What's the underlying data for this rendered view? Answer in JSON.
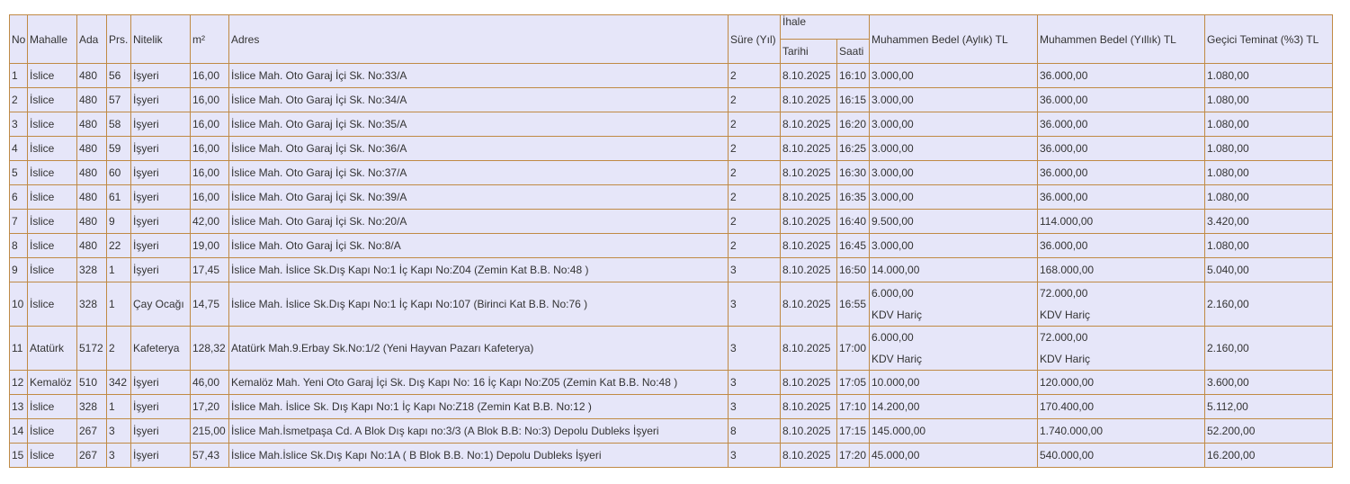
{
  "table": {
    "header": {
      "columns": [
        "No",
        "Mahalle",
        "Ada",
        "Prs.",
        "Nitelik",
        "m²",
        "Adres",
        "Süre (Yıl)"
      ],
      "group": "İhale",
      "group_columns": [
        "Tarihi",
        "Saati"
      ],
      "tail_columns": [
        "Muhammen Bedel (Aylık) TL",
        "Muhammen Bedel (Yıllık) TL",
        "Geçici Teminat (%3) TL"
      ]
    },
    "rows": [
      [
        "1",
        "İslice",
        "480",
        "56",
        "İşyeri",
        "16,00",
        "İslice Mah. Oto Garaj İçi Sk. No:33/A",
        "2",
        "8.10.2025",
        "16:10",
        "3.000,00",
        "36.000,00",
        "1.080,00"
      ],
      [
        "2",
        "İslice",
        "480",
        "57",
        "İşyeri",
        "16,00",
        "İslice Mah. Oto Garaj İçi Sk. No:34/A",
        "2",
        "8.10.2025",
        "16:15",
        "3.000,00",
        "36.000,00",
        "1.080,00"
      ],
      [
        "3",
        "İslice",
        "480",
        "58",
        "İşyeri",
        "16,00",
        "İslice Mah. Oto Garaj İçi Sk. No:35/A",
        "2",
        "8.10.2025",
        "16:20",
        "3.000,00",
        "36.000,00",
        "1.080,00"
      ],
      [
        "4",
        "İslice",
        "480",
        "59",
        "İşyeri",
        "16,00",
        "İslice Mah. Oto Garaj İçi Sk. No:36/A",
        "2",
        "8.10.2025",
        "16:25",
        "3.000,00",
        "36.000,00",
        "1.080,00"
      ],
      [
        "5",
        "İslice",
        "480",
        "60",
        "İşyeri",
        "16,00",
        "İslice Mah. Oto Garaj İçi Sk. No:37/A",
        "2",
        "8.10.2025",
        "16:30",
        "3.000,00",
        "36.000,00",
        "1.080,00"
      ],
      [
        "6",
        "İslice",
        "480",
        "61",
        "İşyeri",
        "16,00",
        "İslice Mah. Oto Garaj İçi Sk. No:39/A",
        "2",
        "8.10.2025",
        "16:35",
        "3.000,00",
        "36.000,00",
        "1.080,00"
      ],
      [
        "7",
        "İslice",
        "480",
        "9",
        "İşyeri",
        "42,00",
        "İslice Mah. Oto Garaj İçi Sk. No:20/A",
        "2",
        "8.10.2025",
        "16:40",
        "9.500,00",
        "114.000,00",
        "3.420,00"
      ],
      [
        "8",
        "İslice",
        "480",
        "22",
        "İşyeri",
        "19,00",
        "İslice Mah. Oto Garaj İçi Sk. No:8/A",
        "2",
        "8.10.2025",
        "16:45",
        "3.000,00",
        "36.000,00",
        "1.080,00"
      ],
      [
        "9",
        "İslice",
        "328",
        "1",
        "İşyeri",
        "17,45",
        "İslice Mah. İslice Sk.Dış Kapı No:1 İç Kapı No:Z04 (Zemin Kat B.B. No:48 )",
        "3",
        "8.10.2025",
        "16:50",
        "14.000,00",
        "168.000,00",
        "5.040,00"
      ],
      [
        "10",
        "İslice",
        "328",
        "1",
        "Çay Ocağı",
        "14,75",
        "İslice Mah. İslice Sk.Dış Kapı No:1 İç Kapı No:107 (Birinci Kat B.B. No:76 )",
        "3",
        "8.10.2025",
        "16:55",
        [
          "6.000,00",
          "KDV Hariç"
        ],
        [
          "72.000,00",
          "KDV Hariç"
        ],
        "2.160,00"
      ],
      [
        "11",
        "Atatürk",
        "5172",
        "2",
        "Kafeterya",
        "128,32",
        "Atatürk Mah.9.Erbay Sk.No:1/2 (Yeni Hayvan Pazarı Kafeterya)",
        "3",
        "8.10.2025",
        "17:00",
        [
          "6.000,00",
          "KDV Hariç"
        ],
        [
          "72.000,00",
          "KDV Hariç"
        ],
        "2.160,00"
      ],
      [
        "12",
        "Kemalöz",
        "510",
        "342",
        "İşyeri",
        "46,00",
        "Kemalöz Mah. Yeni Oto Garaj İçi Sk. Dış Kapı No: 16 İç Kapı No:Z05 (Zemin Kat B.B. No:48 )",
        "3",
        "8.10.2025",
        "17:05",
        "10.000,00",
        "120.000,00",
        "3.600,00"
      ],
      [
        "13",
        "İslice",
        "328",
        "1",
        "İşyeri",
        "17,20",
        "İslice Mah. İslice Sk. Dış Kapı No:1 İç Kapı No:Z18 (Zemin Kat B.B. No:12 )",
        "3",
        "8.10.2025",
        "17:10",
        "14.200,00",
        "170.400,00",
        "5.112,00"
      ],
      [
        "14",
        "İslice",
        "267",
        "3",
        "İşyeri",
        "215,00",
        "İslice Mah.İsmetpaşa Cd. A Blok Dış kapı no:3/3 (A Blok B.B: No:3)  Depolu Dubleks İşyeri",
        "8",
        "8.10.2025",
        "17:15",
        "145.000,00",
        "1.740.000,00",
        "52.200,00"
      ],
      [
        "15",
        "İslice",
        "267",
        "3",
        "İşyeri",
        "57,43",
        "İslice Mah.İslice Sk.Dış Kapı No:1A ( B Blok B.B. No:1) Depolu Dubleks İşyeri",
        "3",
        "8.10.2025",
        "17:20",
        "45.000,00",
        "540.000,00",
        "16.200,00"
      ]
    ]
  }
}
